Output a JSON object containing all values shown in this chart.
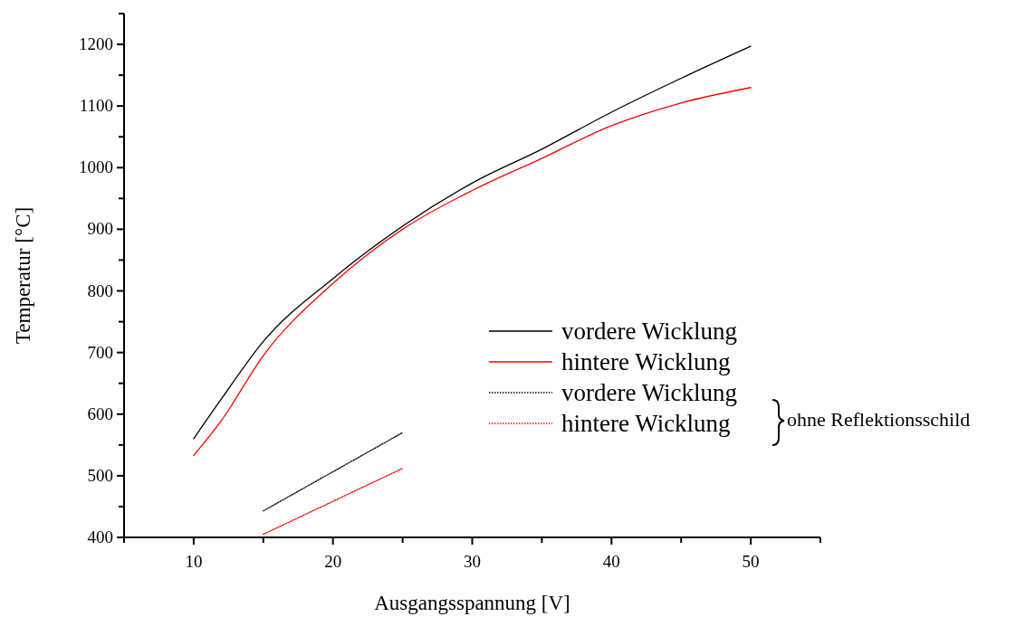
{
  "chart_data": {
    "type": "line",
    "xlabel": "Ausgangsspannung [V]",
    "ylabel": "Temperatur [°C]",
    "xlim": [
      5,
      55
    ],
    "xticks": [
      {
        "value": 5,
        "label": null
      },
      10,
      {
        "value": 15,
        "label": null
      },
      20,
      {
        "value": 25,
        "label": null
      },
      30,
      {
        "value": 35,
        "label": null
      },
      40,
      {
        "value": 45,
        "label": null
      },
      50,
      {
        "value": 55,
        "label": null
      }
    ],
    "ylim": [
      400,
      1250
    ],
    "yticks": [
      400,
      {
        "value": 450,
        "label": null
      },
      500,
      {
        "value": 550,
        "label": null
      },
      600,
      {
        "value": 650,
        "label": null
      },
      700,
      {
        "value": 750,
        "label": null
      },
      800,
      {
        "value": 850,
        "label": null
      },
      900,
      {
        "value": 950,
        "label": null
      },
      1000,
      {
        "value": 1050,
        "label": null
      },
      1100,
      {
        "value": 1150,
        "label": null
      },
      1200,
      {
        "value": 1250,
        "label": null
      }
    ],
    "grid": false,
    "legend": "right",
    "annotations": [
      "ohne Reflektionsschild"
    ],
    "series": [
      {
        "name": "vordere Wicklung",
        "color": "#000000",
        "line_style": "solid",
        "x": [
          10,
          12,
          15,
          20,
          25,
          30,
          35,
          40,
          45,
          50
        ],
        "values": [
          560,
          625,
          718,
          820,
          905,
          975,
          1030,
          1090,
          1145,
          1197
        ]
      },
      {
        "name": "hintere Wicklung",
        "color": "#ff0000",
        "line_style": "solid",
        "x": [
          10,
          12,
          15,
          20,
          25,
          30,
          35,
          40,
          45,
          50
        ],
        "values": [
          533,
          590,
          695,
          812,
          900,
          963,
          1015,
          1068,
          1105,
          1130
        ]
      },
      {
        "name": "vordere Wicklung",
        "color": "#000000",
        "line_style": "dotted",
        "x": [
          15,
          25
        ],
        "values": [
          443,
          570
        ]
      },
      {
        "name": "hintere Wicklung",
        "color": "#ff0000",
        "line_style": "dotted",
        "x": [
          15,
          25
        ],
        "values": [
          405,
          512
        ]
      }
    ]
  }
}
